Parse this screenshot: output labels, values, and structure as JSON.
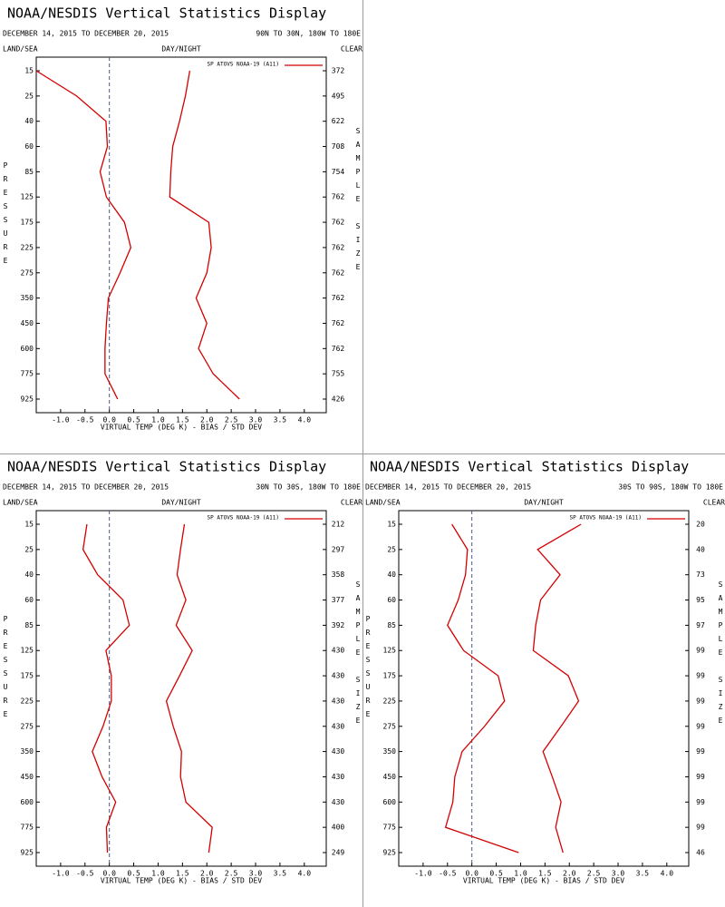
{
  "chart_data": [
    {
      "type": "line",
      "title": "NOAA/NESDIS Vertical Statistics Display",
      "subtitle": "DECEMBER 14, 2015 TO DECEMBER 20, 2015",
      "region": "90N TO 30N, 180W TO 180E",
      "left_header": "LAND/SEA",
      "center_header": "DAY/NIGHT",
      "right_header": "CLEAR",
      "ylabel": "PRESSURE",
      "y2label": "SAMPLE SIZE",
      "xlabel": "VIRTUAL TEMP (DEG K) - BIAS / STD DEV",
      "categories": [
        15,
        25,
        40,
        60,
        85,
        125,
        175,
        225,
        275,
        350,
        450,
        600,
        775,
        925
      ],
      "sample_size": [
        372,
        495,
        622,
        708,
        754,
        762,
        762,
        762,
        762,
        762,
        762,
        762,
        755,
        426
      ],
      "series": [
        {
          "name": "SP ATOVS NOAA-19 (A11)",
          "color": "#d40000",
          "bias": [
            -1.5,
            -0.67,
            -0.07,
            -0.04,
            -0.19,
            -0.06,
            0.31,
            0.44,
            0.22,
            -0.02,
            -0.06,
            -0.09,
            -0.09,
            0.17
          ],
          "std_dev": [
            1.65,
            1.56,
            1.44,
            1.3,
            1.26,
            1.24,
            2.04,
            2.09,
            2.0,
            1.78,
            2.0,
            1.83,
            2.13,
            2.67
          ]
        }
      ],
      "xlim": [
        -1.5,
        4.45
      ],
      "xticks": [
        {
          "value": -1,
          "label": "-1.0"
        },
        -0.5,
        {
          "value": 0,
          "label": "0.0"
        },
        0.5,
        {
          "value": 1,
          "label": "1.0"
        },
        1.5,
        {
          "value": 2,
          "label": "2.0"
        },
        2.5,
        {
          "value": 3,
          "label": "3.0"
        },
        3.5,
        {
          "value": 4,
          "label": "4.0"
        }
      ]
    },
    {
      "type": "line",
      "title": "NOAA/NESDIS Vertical Statistics Display",
      "subtitle": "DECEMBER 14, 2015 TO DECEMBER 20, 2015",
      "region": "30N TO 30S, 180W TO 180E",
      "left_header": "LAND/SEA",
      "center_header": "DAY/NIGHT",
      "right_header": "CLEAR",
      "ylabel": "PRESSURE",
      "y2label": "SAMPLE SIZE",
      "xlabel": "VIRTUAL TEMP (DEG K) - BIAS / STD DEV",
      "categories": [
        15,
        25,
        40,
        60,
        85,
        125,
        175,
        225,
        275,
        350,
        450,
        600,
        775,
        925
      ],
      "sample_size": [
        212,
        297,
        358,
        377,
        392,
        430,
        430,
        430,
        430,
        430,
        430,
        430,
        400,
        249
      ],
      "series": [
        {
          "name": "SP ATOVS NOAA-19 (A11)",
          "color": "#d40000",
          "bias": [
            -0.46,
            -0.54,
            -0.24,
            0.28,
            0.41,
            -0.07,
            0.04,
            0.04,
            -0.13,
            -0.35,
            -0.15,
            0.13,
            -0.06,
            -0.04
          ],
          "std_dev": [
            1.54,
            1.46,
            1.39,
            1.57,
            1.37,
            1.7,
            1.44,
            1.17,
            1.31,
            1.48,
            1.46,
            1.57,
            2.11,
            2.04
          ]
        }
      ],
      "xlim": [
        -1.5,
        4.45
      ],
      "xticks": [
        {
          "value": -1,
          "label": "-1.0"
        },
        -0.5,
        {
          "value": 0,
          "label": "0.0"
        },
        0.5,
        {
          "value": 1,
          "label": "1.0"
        },
        1.5,
        {
          "value": 2,
          "label": "2.0"
        },
        2.5,
        {
          "value": 3,
          "label": "3.0"
        },
        3.5,
        {
          "value": 4,
          "label": "4.0"
        }
      ]
    },
    {
      "type": "line",
      "title": "NOAA/NESDIS Vertical Statistics Display",
      "subtitle": "DECEMBER 14, 2015 TO DECEMBER 20, 2015",
      "region": "30S TO 90S, 180W TO 180E",
      "left_header": "LAND/SEA",
      "center_header": "DAY/NIGHT",
      "right_header": "CLEAR",
      "ylabel": "PRESSURE",
      "y2label": "SAMPLE SIZE",
      "xlabel": "VIRTUAL TEMP (DEG K) - BIAS / STD DEV",
      "categories": [
        15,
        25,
        40,
        60,
        85,
        125,
        175,
        225,
        275,
        350,
        450,
        600,
        775,
        925
      ],
      "sample_size": [
        20,
        40,
        73,
        95,
        97,
        99,
        99,
        99,
        99,
        99,
        99,
        99,
        99,
        46
      ],
      "series": [
        {
          "name": "SP ATOVS NOAA-19 (A11)",
          "color": "#d40000",
          "bias": [
            -0.41,
            -0.09,
            -0.13,
            -0.28,
            -0.5,
            -0.17,
            0.54,
            0.67,
            0.26,
            -0.2,
            -0.35,
            -0.39,
            -0.54,
            0.96
          ],
          "std_dev": [
            2.24,
            1.35,
            1.81,
            1.41,
            1.31,
            1.26,
            1.98,
            2.19,
            1.83,
            1.46,
            1.65,
            1.83,
            1.72,
            1.87
          ]
        }
      ],
      "xlim": [
        -1.5,
        4.45
      ],
      "xticks": [
        {
          "value": -1,
          "label": "-1.0"
        },
        -0.5,
        {
          "value": 0,
          "label": "0.0"
        },
        0.5,
        {
          "value": 1,
          "label": "1.0"
        },
        1.5,
        {
          "value": 2,
          "label": "2.0"
        },
        2.5,
        {
          "value": 3,
          "label": "3.0"
        },
        3.5,
        {
          "value": 4,
          "label": "4.0"
        }
      ]
    }
  ]
}
